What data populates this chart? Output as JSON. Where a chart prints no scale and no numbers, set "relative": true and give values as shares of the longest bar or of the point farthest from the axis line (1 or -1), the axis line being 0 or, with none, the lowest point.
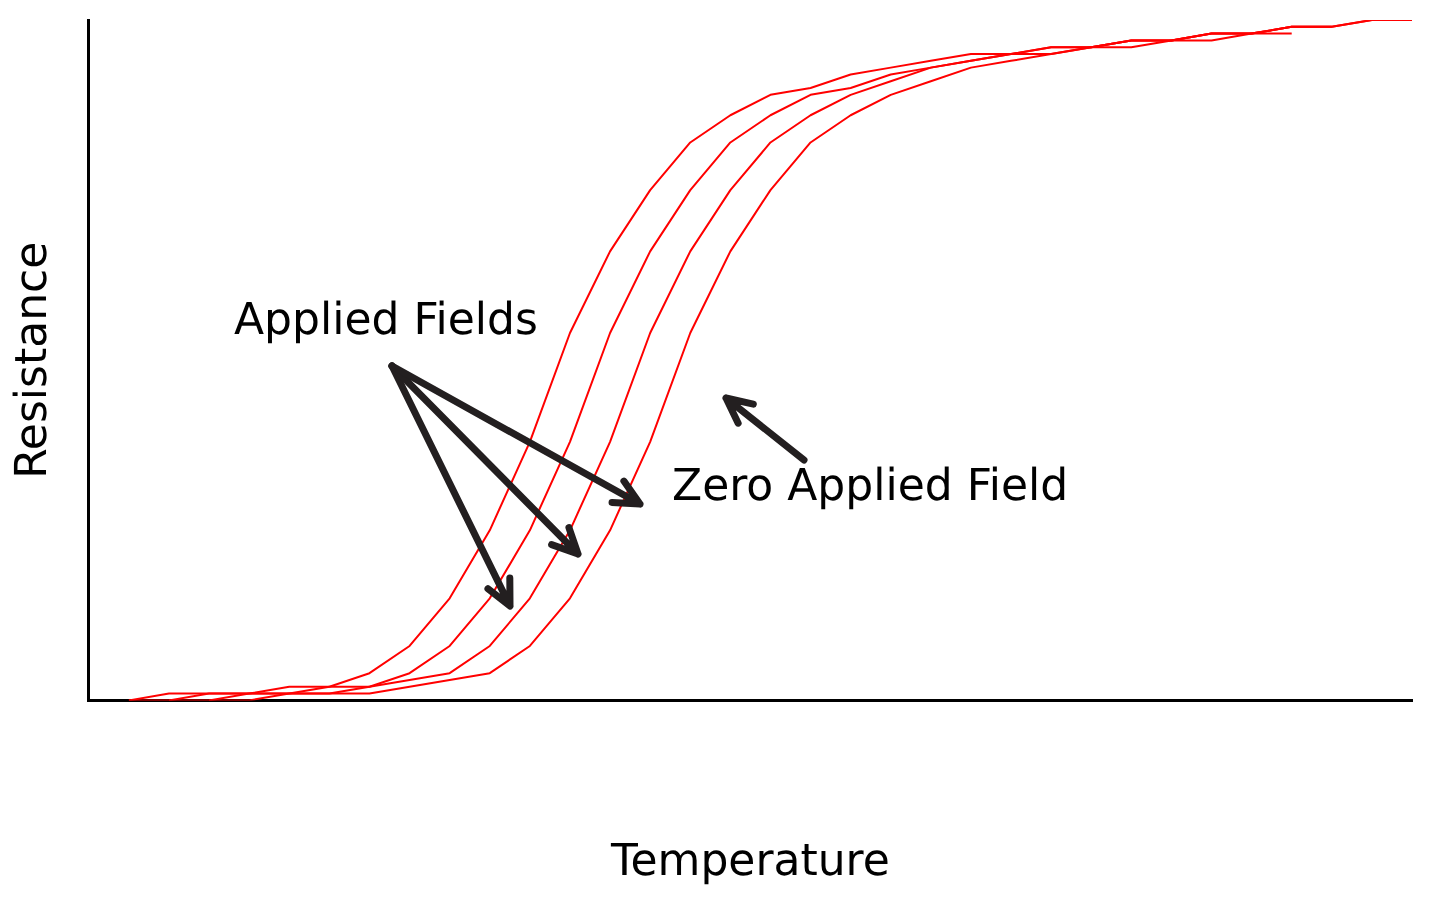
{
  "chart_data": {
    "type": "line",
    "relative": true,
    "xlabel": "Temperature",
    "ylabel": "Resistance",
    "annotations": [
      "Applied Fields",
      "Zero Applied Field"
    ],
    "grid": false,
    "legend": false,
    "marker": "none",
    "line_style": "solid",
    "categories": [
      null,
      null,
      null,
      null,
      null,
      null,
      null,
      null,
      null,
      null,
      null,
      null,
      null,
      null,
      null,
      null,
      null,
      null,
      null,
      null,
      null,
      null,
      null,
      null,
      null,
      null,
      null,
      null,
      null,
      null,
      null,
      null,
      null,
      null
    ],
    "series": [
      {
        "color": "#ff0000",
        "values": [
          null,
          0,
          0.01,
          0.01,
          0.01,
          0.02,
          0.02,
          0.04,
          0.08,
          0.15,
          0.25,
          0.38,
          0.54,
          0.66,
          0.75,
          0.82,
          0.86,
          0.89,
          0.9,
          0.92,
          0.93,
          0.94,
          0.95,
          0.95,
          0.96,
          0.96,
          0.97,
          0.97,
          0.98,
          0.98,
          0.99,
          0.99,
          1,
          1
        ]
      },
      {
        "color": "#ff0000",
        "values": [
          null,
          0,
          0,
          0.01,
          0.01,
          0.01,
          0.02,
          0.02,
          0.04,
          0.08,
          0.15,
          0.25,
          0.38,
          0.54,
          0.66,
          0.75,
          0.82,
          0.86,
          0.89,
          0.9,
          0.92,
          0.93,
          0.94,
          0.95,
          0.96,
          0.96,
          0.97,
          0.97,
          0.98,
          0.98,
          0.99,
          0.99,
          1,
          null
        ]
      },
      {
        "color": "#ff0000",
        "values": [
          null,
          null,
          0,
          0,
          0.01,
          0.01,
          0.01,
          0.02,
          0.03,
          0.04,
          0.08,
          0.15,
          0.25,
          0.38,
          0.54,
          0.66,
          0.75,
          0.82,
          0.86,
          0.89,
          0.91,
          0.93,
          0.94,
          0.95,
          0.95,
          0.96,
          0.97,
          0.97,
          0.98,
          0.98,
          0.99,
          0.99,
          null,
          null
        ]
      },
      {
        "color": "#ff0000",
        "values": [
          null,
          null,
          null,
          0,
          0,
          0.01,
          0.01,
          0.01,
          0.02,
          0.03,
          0.04,
          0.08,
          0.15,
          0.25,
          0.38,
          0.54,
          0.66,
          0.75,
          0.82,
          0.86,
          0.89,
          0.91,
          0.93,
          0.94,
          0.95,
          0.96,
          0.96,
          0.97,
          0.97,
          0.98,
          0.98,
          null,
          null,
          null
        ]
      }
    ]
  }
}
